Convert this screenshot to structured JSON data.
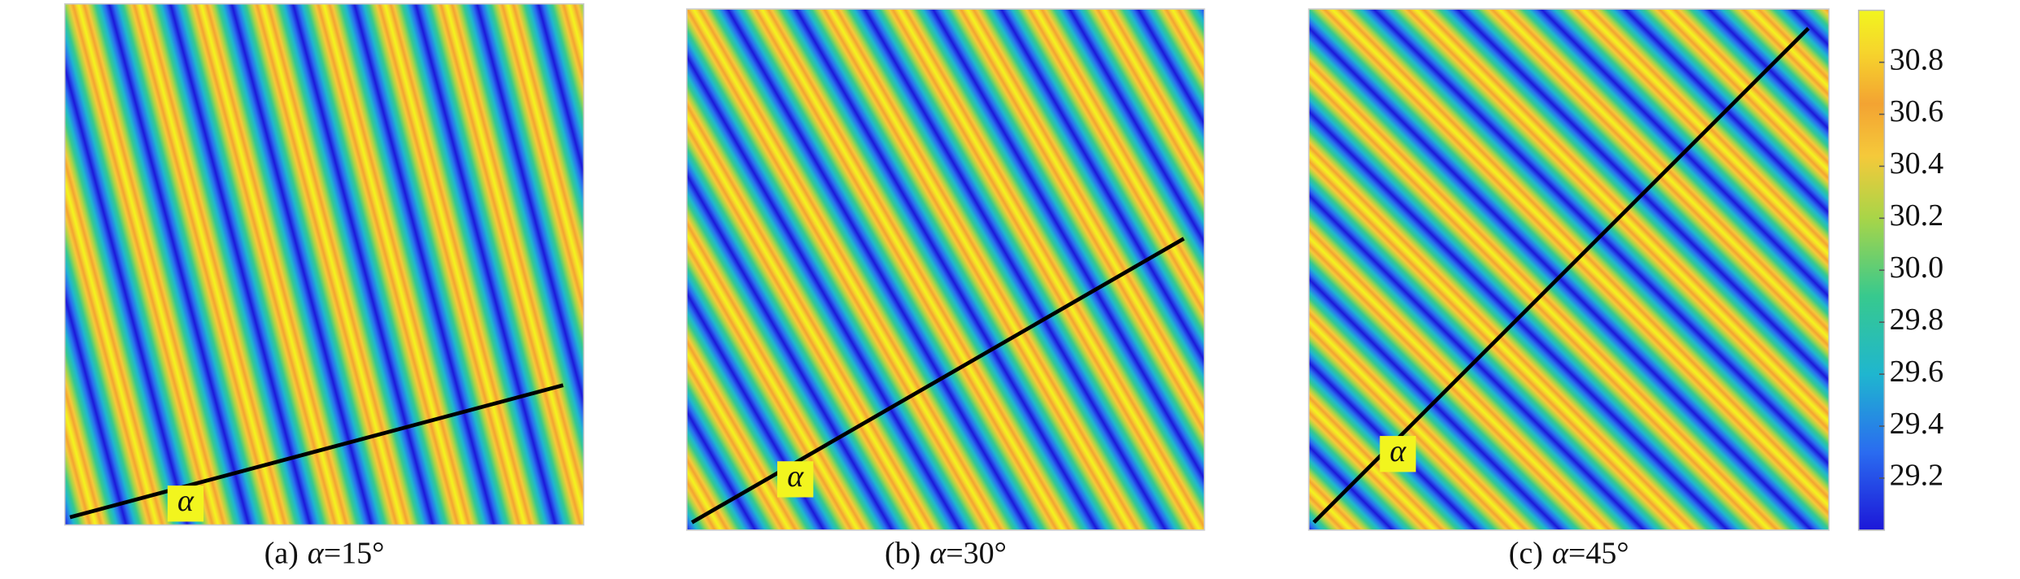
{
  "symbol": "α",
  "panels": [
    {
      "label": "(a)",
      "angle": 15,
      "angle_text": "=15°"
    },
    {
      "label": "(b)",
      "angle": 30,
      "angle_text": "=30°"
    },
    {
      "label": "(c)",
      "angle": 45,
      "angle_text": "=45°"
    }
  ],
  "colorbar": {
    "range": [
      29,
      31
    ],
    "ticks": [
      29.2,
      29.4,
      29.6,
      29.8,
      {
        "value": 30,
        "label": "30.0"
      },
      30.2,
      30.4,
      30.6,
      30.8
    ]
  }
}
